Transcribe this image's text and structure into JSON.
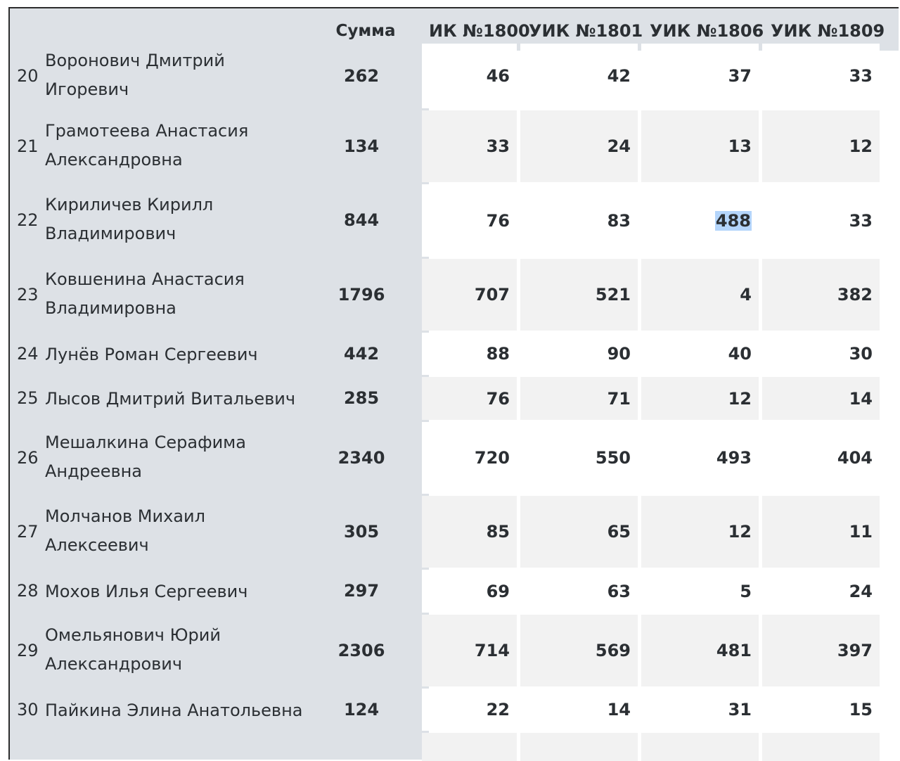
{
  "header": {
    "sum": "Сумма",
    "columns": [
      "ИК №1800",
      "УИК №1801",
      "УИК №1806",
      "УИК №1809"
    ]
  },
  "rows": [
    {
      "num": "20",
      "name": "Воронович Дмитрий Игоревич",
      "sum": "262",
      "v": [
        "46",
        "42",
        "37",
        "33"
      ]
    },
    {
      "num": "21",
      "name": "Грамотеева Анастасия Александровна",
      "sum": "134",
      "v": [
        "33",
        "24",
        "13",
        "12"
      ]
    },
    {
      "num": "22",
      "name": "Кириличев Кирилл Владимирович",
      "sum": "844",
      "v": [
        "76",
        "83",
        "488",
        "33"
      ],
      "selected": 2
    },
    {
      "num": "23",
      "name": "Ковшенина Анастасия Владимировна",
      "sum": "1796",
      "v": [
        "707",
        "521",
        "4",
        "382"
      ]
    },
    {
      "num": "24",
      "name": "Лунёв Роман Сергеевич",
      "sum": "442",
      "v": [
        "88",
        "90",
        "40",
        "30"
      ]
    },
    {
      "num": "25",
      "name": "Лысов Дмитрий Витальевич",
      "sum": "285",
      "v": [
        "76",
        "71",
        "12",
        "14"
      ]
    },
    {
      "num": "26",
      "name": "Мешалкина Серафима Андреевна",
      "sum": "2340",
      "v": [
        "720",
        "550",
        "493",
        "404"
      ]
    },
    {
      "num": "27",
      "name": "Молчанов Михаил Алексеевич",
      "sum": "305",
      "v": [
        "85",
        "65",
        "12",
        "11"
      ]
    },
    {
      "num": "28",
      "name": "Мохов Илья Сергеевич",
      "sum": "297",
      "v": [
        "69",
        "63",
        "5",
        "24"
      ]
    },
    {
      "num": "29",
      "name": "Омельянович Юрий Александрович",
      "sum": "2306",
      "v": [
        "714",
        "569",
        "481",
        "397"
      ]
    },
    {
      "num": "30",
      "name": "Пайкина Элина Анатольевна",
      "sum": "124",
      "v": [
        "22",
        "14",
        "31",
        "15"
      ]
    }
  ],
  "colors": {
    "panel": "#dde1e6",
    "selection": "#b4d5fb",
    "text": "#2b2f33"
  }
}
